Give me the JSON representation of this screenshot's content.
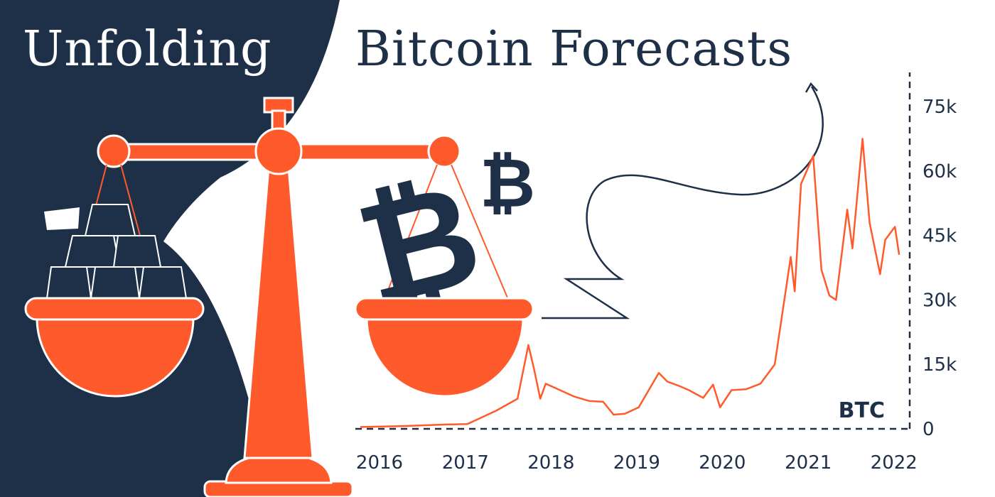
{
  "title": {
    "left": "Unfolding",
    "right": "Bitcoin Forecasts"
  },
  "colors": {
    "navy": "#1e3048",
    "orange": "#ff5a2c",
    "white": "#ffffff"
  },
  "icons": {
    "large_coin": "bitcoin-symbol-icon",
    "small_coin": "bitcoin-symbol-icon",
    "scale": "balance-scale-icon",
    "gold_bars": "gold-bars-icon"
  },
  "chart_data": {
    "type": "line",
    "title": "",
    "series": [
      {
        "name": "BTC",
        "x": [
          "2016-01-01",
          "2016-07-01",
          "2017-01-01",
          "2017-04-01",
          "2017-08-01",
          "2017-11-01",
          "2017-12-17",
          "2018-01-10",
          "2018-02-06",
          "2018-03-01",
          "2018-05-01",
          "2018-07-01",
          "2018-09-01",
          "2018-11-01",
          "2018-12-15",
          "2019-02-01",
          "2019-04-01",
          "2019-06-26",
          "2019-08-01",
          "2019-09-20",
          "2019-11-01",
          "2020-01-01",
          "2020-02-12",
          "2020-03-13",
          "2020-05-01",
          "2020-07-01",
          "2020-09-01",
          "2020-11-01",
          "2021-01-08",
          "2021-01-25",
          "2021-02-21",
          "2021-04-14",
          "2021-05-19",
          "2021-06-22",
          "2021-07-20",
          "2021-09-06",
          "2021-09-28",
          "2021-11-10",
          "2021-12-10",
          "2022-01-24",
          "2022-02-15",
          "2022-03-28",
          "2022-04-15"
        ],
        "values": [
          430,
          650,
          1000,
          1100,
          4200,
          7000,
          19500,
          14000,
          7000,
          10500,
          9000,
          7500,
          6500,
          6300,
          3300,
          3500,
          5000,
          13000,
          11000,
          10000,
          9000,
          7200,
          10300,
          5000,
          9000,
          9200,
          10500,
          15000,
          40000,
          32000,
          57000,
          63500,
          37000,
          31000,
          30000,
          51000,
          42000,
          67500,
          48000,
          36000,
          44000,
          47000,
          40500
        ]
      }
    ],
    "xlabel": "",
    "ylabel": "",
    "x_tick_labels": [
      "2016",
      "2017",
      "2018",
      "2019",
      "2020",
      "2021",
      "2022"
    ],
    "y_tick_labels": [
      "0",
      "15k",
      "30k",
      "45k",
      "60k",
      "75k"
    ],
    "ylim": [
      0,
      80000
    ],
    "series_label": "BTC",
    "y_axis_position": "right",
    "grid": false,
    "legend": "none"
  }
}
